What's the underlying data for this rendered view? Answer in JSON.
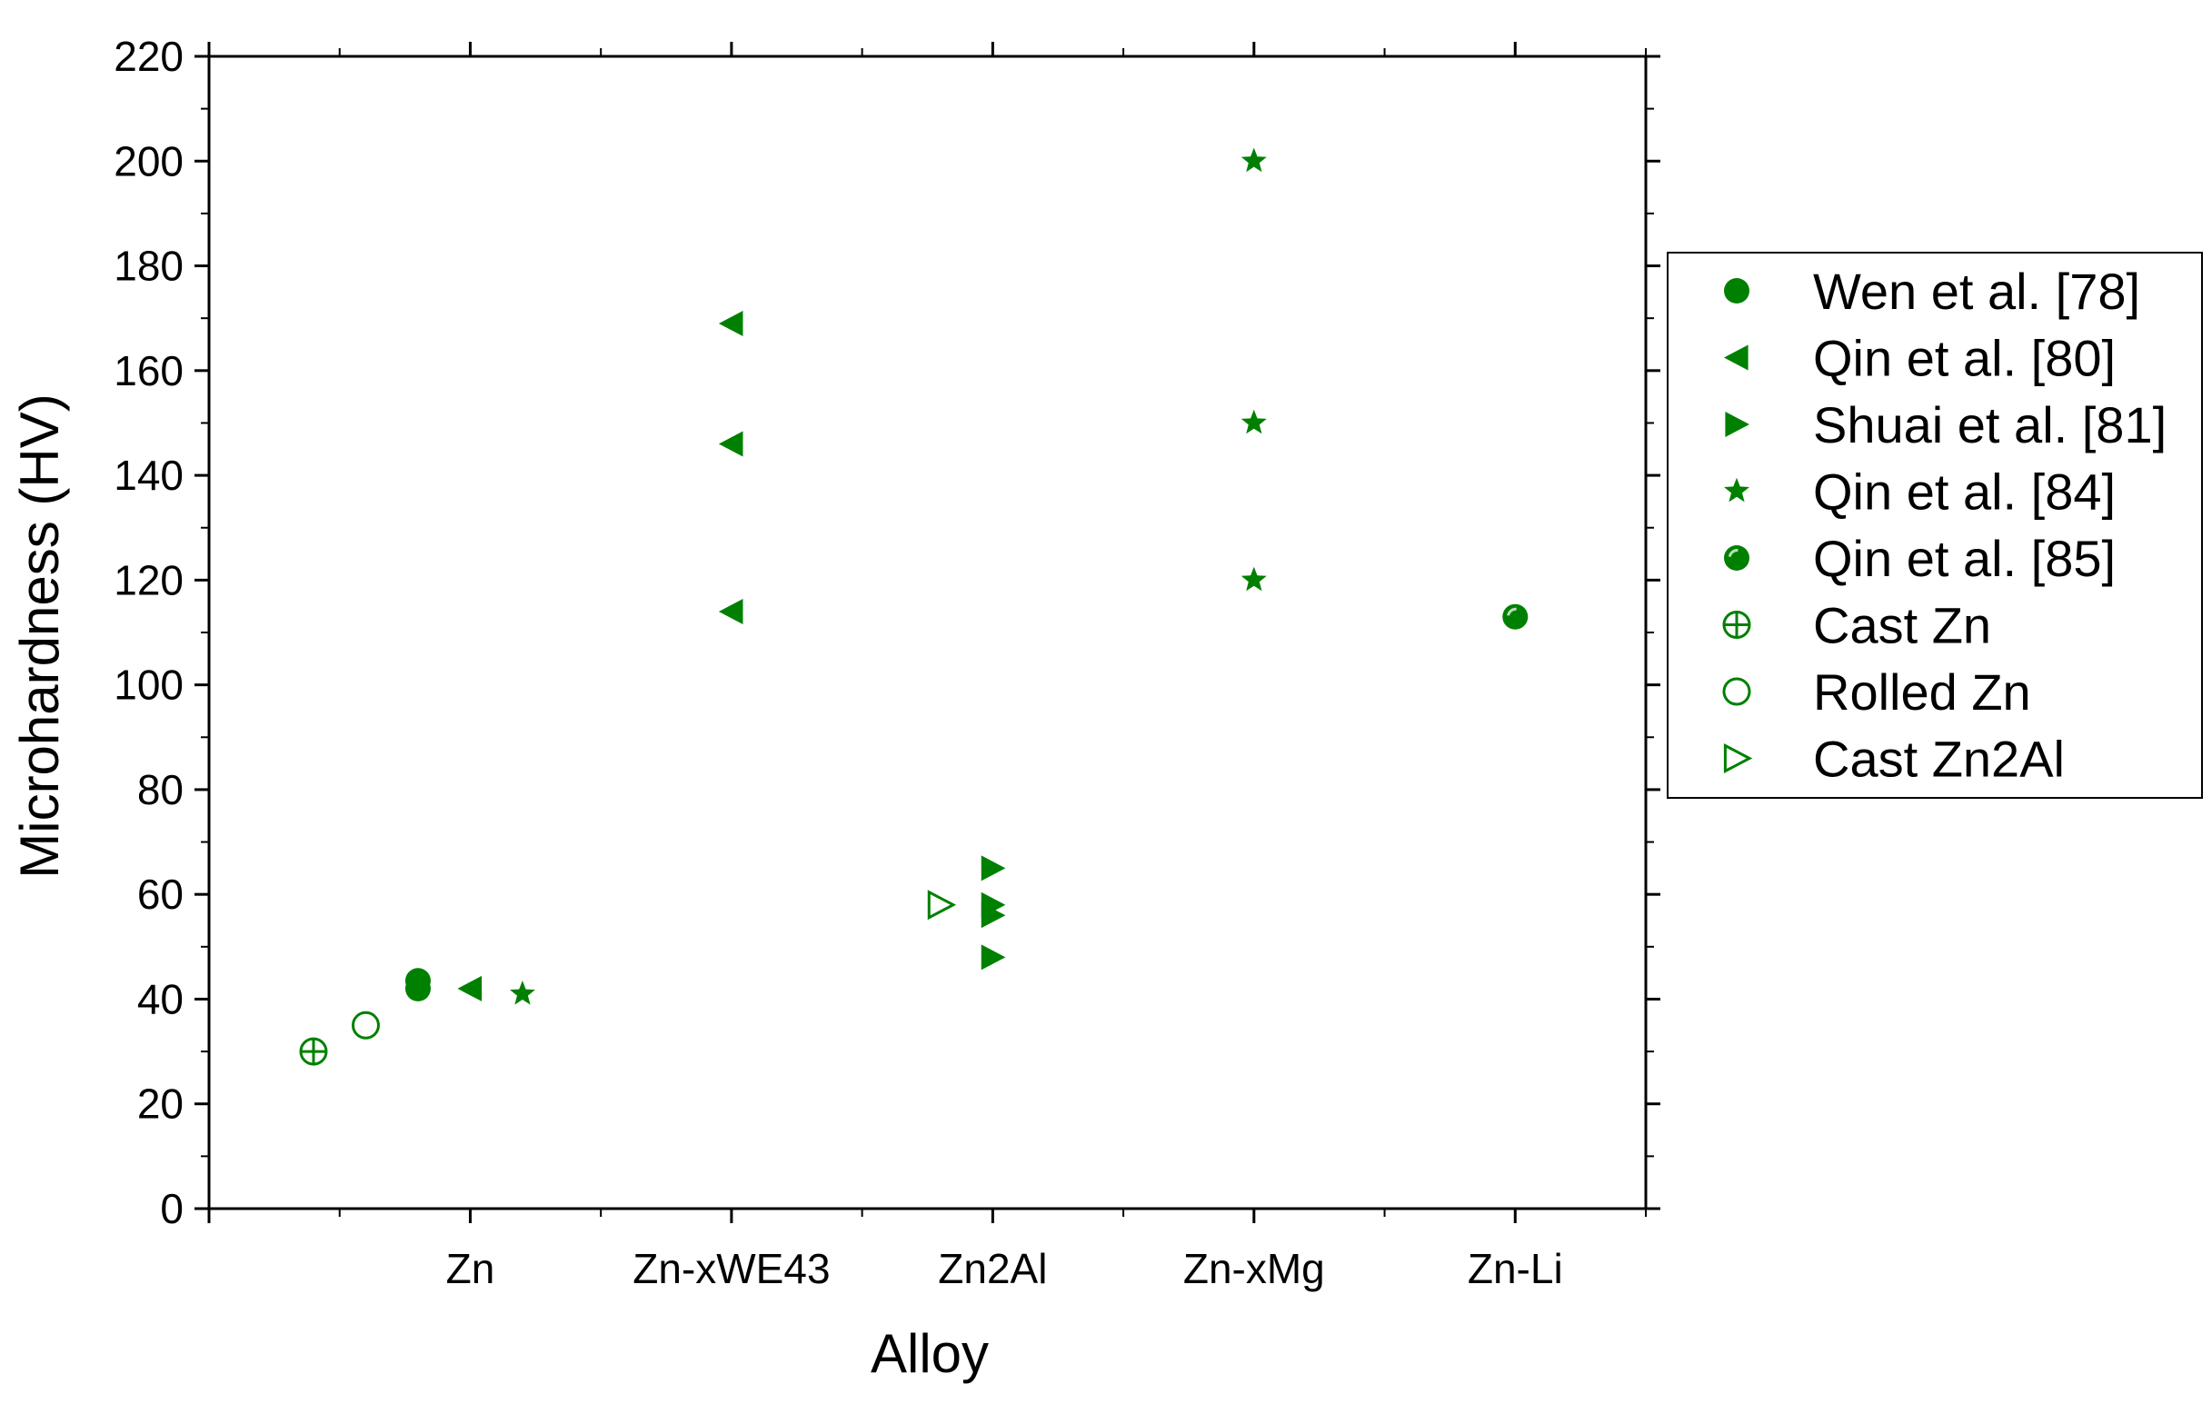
{
  "chart_data": {
    "type": "scatter",
    "xlabel": "Alloy",
    "ylabel": "Microhardness (HV)",
    "categories": [
      "Zn",
      "Zn-xWE43",
      "Zn2Al",
      "Zn-xMg",
      "Zn-Li"
    ],
    "x_range": [
      0,
      5.5
    ],
    "ylim": [
      0,
      220
    ],
    "y_ticks": [
      0,
      20,
      40,
      60,
      80,
      100,
      120,
      140,
      160,
      180,
      200,
      220
    ],
    "grid": false,
    "legend_position": "right",
    "color": "#008000",
    "series": [
      {
        "name": "Wen et al. [78]",
        "marker": "filled-circle",
        "points": [
          {
            "x": 0.8,
            "y": 42
          },
          {
            "x": 0.8,
            "y": 43.5
          }
        ]
      },
      {
        "name": "Qin et al. [80]",
        "marker": "filled-left-triangle",
        "points": [
          {
            "x": 1.0,
            "y": 42
          },
          {
            "x": 2.0,
            "y": 169
          },
          {
            "x": 2.0,
            "y": 146
          },
          {
            "x": 2.0,
            "y": 114
          }
        ]
      },
      {
        "name": "Shuai et al. [81]",
        "marker": "filled-right-triangle",
        "points": [
          {
            "x": 3.0,
            "y": 65
          },
          {
            "x": 3.0,
            "y": 58
          },
          {
            "x": 3.0,
            "y": 56
          },
          {
            "x": 3.0,
            "y": 48
          }
        ]
      },
      {
        "name": "Qin et al. [84]",
        "marker": "filled-star",
        "points": [
          {
            "x": 1.2,
            "y": 41
          },
          {
            "x": 4.0,
            "y": 200
          },
          {
            "x": 4.0,
            "y": 150
          },
          {
            "x": 4.0,
            "y": 120
          }
        ]
      },
      {
        "name": "Qin et al. [85]",
        "marker": "half-filled-circle",
        "points": [
          {
            "x": 5.0,
            "y": 113
          }
        ]
      },
      {
        "name": "Cast Zn",
        "marker": "crossed-circle",
        "points": [
          {
            "x": 0.4,
            "y": 30
          }
        ]
      },
      {
        "name": "Rolled Zn",
        "marker": "open-circle",
        "points": [
          {
            "x": 0.6,
            "y": 35
          }
        ]
      },
      {
        "name": "Cast Zn2Al",
        "marker": "open-right-triangle",
        "points": [
          {
            "x": 2.8,
            "y": 58
          }
        ]
      }
    ]
  }
}
